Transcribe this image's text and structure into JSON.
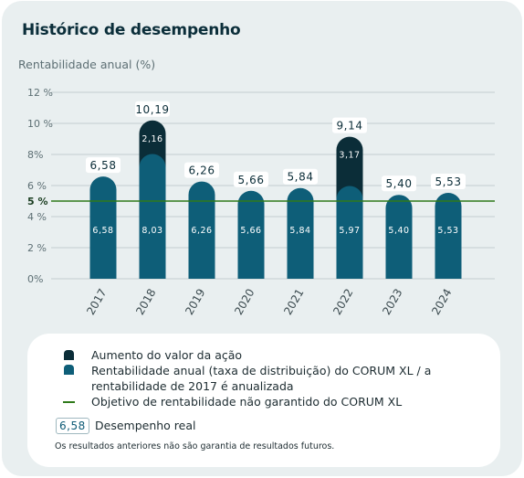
{
  "header": {
    "title": "Histórico de desempenho",
    "subtitle": "Rentabilidade anual (%)"
  },
  "legend": {
    "increase_label": "Aumento do valor da ação",
    "annual_label_line1": "Rentabilidade anual (taxa de distribuição) do CORUM XL / a",
    "annual_label_line2": "rentabilidade de 2017 é anualizada",
    "target_label": "Objetivo de rentabilidade não garantido do CORUM XL",
    "real_sample_value": "6,58",
    "real_label": "Desempenho real",
    "disclaimer": "Os resultados anteriores não são garantia de resultados futuros."
  },
  "colors": {
    "base_bar": "#0e5e78",
    "increase_bar": "#0b2d38",
    "target_line": "#2f7a1a",
    "grid": "#c3cdd0",
    "axis_text": "#5d6f74"
  },
  "chart_data": {
    "type": "bar",
    "stacked": true,
    "categories": [
      "2017",
      "2018",
      "2019",
      "2020",
      "2021",
      "2022",
      "2023",
      "2024"
    ],
    "series": [
      {
        "name": "Rentabilidade anual (taxa de distribuição) do CORUM XL",
        "values": [
          6.58,
          8.03,
          6.26,
          5.66,
          5.84,
          5.97,
          5.4,
          5.53
        ],
        "labels": [
          "6,58",
          "8,03",
          "6,26",
          "5,66",
          "5,84",
          "5,97",
          "5,40",
          "5,53"
        ]
      },
      {
        "name": "Aumento do valor da ação",
        "values": [
          0,
          2.16,
          0,
          0,
          0,
          3.17,
          0,
          0
        ],
        "labels": [
          "",
          "2,16",
          "",
          "",
          "",
          "3,17",
          "",
          ""
        ]
      }
    ],
    "totals": [
      6.58,
      10.19,
      6.26,
      5.66,
      5.84,
      9.14,
      5.4,
      5.53
    ],
    "total_labels": [
      "6,58",
      "10,19",
      "6,26",
      "5,66",
      "5,84",
      "9,14",
      "5,40",
      "5,53"
    ],
    "target": {
      "value": 5,
      "label": "5 %"
    },
    "yticks": [
      0,
      2,
      4,
      6,
      8,
      10,
      12
    ],
    "ytick_labels": [
      "0%",
      "2 %",
      "4 %",
      "6 %",
      "8%",
      "10 %",
      "12 %"
    ],
    "ylim": [
      0,
      12
    ],
    "grid": true
  }
}
